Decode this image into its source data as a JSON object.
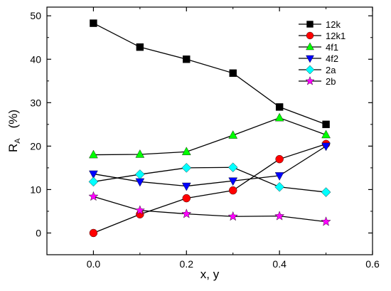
{
  "chart_data": {
    "type": "line",
    "title": "",
    "xlabel": "x, y",
    "ylabel": {
      "main": "R",
      "sub": "A",
      "unit": "(%)"
    },
    "xlim": [
      -0.1,
      0.6
    ],
    "ylim": [
      -5,
      52
    ],
    "xticks": [
      0.0,
      0.2,
      0.4,
      0.6
    ],
    "xtick_labels": [
      "0.0",
      "0.2",
      "0.4",
      "0.6"
    ],
    "yticks": [
      0,
      10,
      20,
      30,
      40,
      50
    ],
    "ytick_labels": [
      "0",
      "10",
      "20",
      "30",
      "40",
      "50"
    ],
    "grid": false,
    "legend_position": "top-right",
    "x": [
      0.0,
      0.1,
      0.2,
      0.3,
      0.4,
      0.5
    ],
    "series": [
      {
        "name": "12k",
        "marker": "square",
        "color": "#000000",
        "values": [
          48.3,
          42.8,
          40.0,
          36.8,
          29.0,
          25.0
        ]
      },
      {
        "name": "12k1",
        "marker": "circle",
        "color": "#ff0000",
        "values": [
          0.0,
          4.3,
          8.0,
          9.8,
          17.0,
          20.5
        ]
      },
      {
        "name": "4f1",
        "marker": "triangle-up",
        "color": "#00ff00",
        "values": [
          18.0,
          18.1,
          18.7,
          22.5,
          26.5,
          22.6
        ]
      },
      {
        "name": "4f2",
        "marker": "triangle-down",
        "color": "#0000ff",
        "values": [
          13.6,
          11.8,
          10.8,
          12.0,
          13.2,
          20.0
        ]
      },
      {
        "name": "2a",
        "marker": "diamond",
        "color": "#00ffff",
        "values": [
          11.8,
          13.5,
          15.0,
          15.1,
          10.6,
          9.4
        ]
      },
      {
        "name": "2b",
        "marker": "star",
        "color": "#ff00ff",
        "values": [
          8.4,
          5.2,
          4.4,
          3.8,
          3.9,
          2.6
        ]
      }
    ]
  }
}
